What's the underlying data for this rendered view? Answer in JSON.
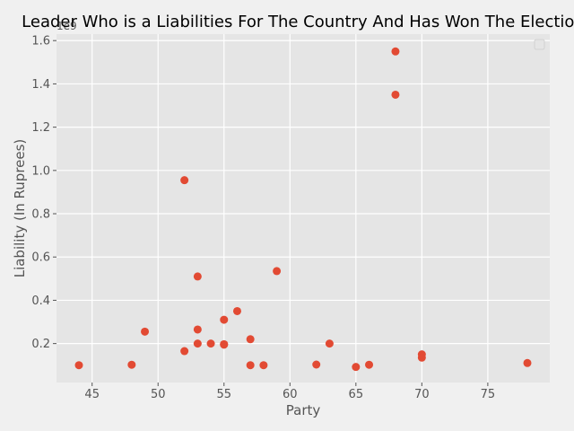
{
  "chart_data": {
    "type": "scatter",
    "title": "Leader Who is a Liabilities For The Country And Has Won The Election",
    "xlabel": "Party",
    "ylabel": "Liability (In Ruprees)",
    "y_offset_label": "1e9",
    "xlim": [
      42.3,
      79.7
    ],
    "ylim": [
      0.02,
      1.63
    ],
    "xticks": [
      45,
      50,
      55,
      60,
      65,
      70,
      75
    ],
    "yticks": [
      0.2,
      0.4,
      0.6,
      0.8,
      1.0,
      1.2,
      1.4,
      1.6
    ],
    "grid": true,
    "legend": "top-right",
    "colors": {
      "point": "#e24a33",
      "plot_bg": "#e5e5e5",
      "grid": "#ffffff",
      "figure_bg": "#f0f0f0"
    },
    "points": [
      {
        "x": 44,
        "y": 0.1
      },
      {
        "x": 48,
        "y": 0.102
      },
      {
        "x": 49,
        "y": 0.255
      },
      {
        "x": 52,
        "y": 0.955
      },
      {
        "x": 52,
        "y": 0.165
      },
      {
        "x": 53,
        "y": 0.51
      },
      {
        "x": 53,
        "y": 0.265
      },
      {
        "x": 53,
        "y": 0.2
      },
      {
        "x": 54,
        "y": 0.2
      },
      {
        "x": 55,
        "y": 0.31
      },
      {
        "x": 55,
        "y": 0.197
      },
      {
        "x": 55,
        "y": 0.195
      },
      {
        "x": 56,
        "y": 0.35
      },
      {
        "x": 57,
        "y": 0.22
      },
      {
        "x": 57,
        "y": 0.1
      },
      {
        "x": 58,
        "y": 0.1
      },
      {
        "x": 59,
        "y": 0.535
      },
      {
        "x": 62,
        "y": 0.103
      },
      {
        "x": 63,
        "y": 0.2
      },
      {
        "x": 65,
        "y": 0.092
      },
      {
        "x": 66,
        "y": 0.102
      },
      {
        "x": 68,
        "y": 1.55
      },
      {
        "x": 68,
        "y": 1.35
      },
      {
        "x": 70,
        "y": 0.15
      },
      {
        "x": 70,
        "y": 0.135
      },
      {
        "x": 78,
        "y": 0.11
      }
    ]
  }
}
